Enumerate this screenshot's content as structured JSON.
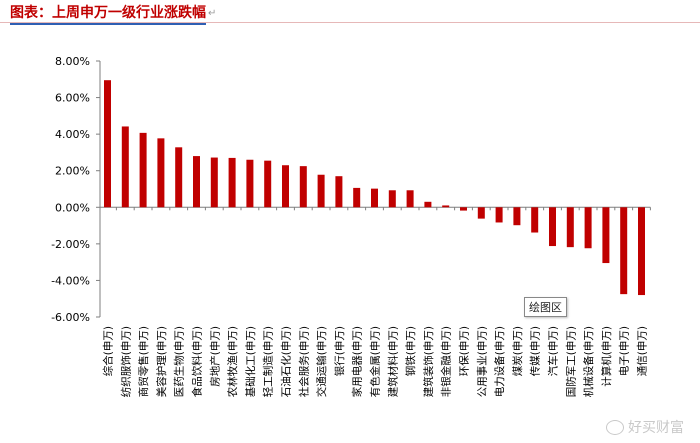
{
  "header": {
    "title": "图表：上周申万一级行业涨跌幅",
    "return_glyph": "↵"
  },
  "chart_data": {
    "type": "bar",
    "categories": [
      "综合(申万)",
      "纺织服饰(申万)",
      "商贸零售(申万)",
      "美容护理(申万)",
      "医药生物(申万)",
      "食品饮料(申万)",
      "房地产(申万)",
      "农林牧渔(申万)",
      "基础化工(申万)",
      "轻工制造(申万)",
      "石油石化(申万)",
      "社会服务(申万)",
      "交通运输(申万)",
      "银行(申万)",
      "家用电器(申万)",
      "有色金属(申万)",
      "建筑材料(申万)",
      "钢铁(申万)",
      "建筑装饰(申万)",
      "非银金融(申万)",
      "环保(申万)",
      "公用事业(申万)",
      "电力设备(申万)",
      "煤炭(申万)",
      "传媒(申万)",
      "汽车(申万)",
      "国防军工(申万)",
      "机械设备(申万)",
      "计算机(申万)",
      "电子(申万)",
      "通信(申万)"
    ],
    "values": [
      6.95,
      4.42,
      4.07,
      3.77,
      3.28,
      2.8,
      2.72,
      2.7,
      2.6,
      2.55,
      2.3,
      2.25,
      1.78,
      1.7,
      1.06,
      1.02,
      0.93,
      0.93,
      0.3,
      0.1,
      -0.18,
      -0.62,
      -0.83,
      -0.98,
      -1.38,
      -2.12,
      -2.18,
      -2.24,
      -3.05,
      -4.75,
      -4.8
    ],
    "y_ticks": [
      "8.00%",
      "6.00%",
      "4.00%",
      "2.00%",
      "0.00%",
      "-2.00%",
      "-4.00%",
      "-6.00%"
    ],
    "ylim": [
      -6,
      8
    ],
    "bar_color": "#c00000",
    "grid": false
  },
  "tooltip": {
    "label": "绘图区"
  },
  "watermark": {
    "text": "好买财富"
  }
}
